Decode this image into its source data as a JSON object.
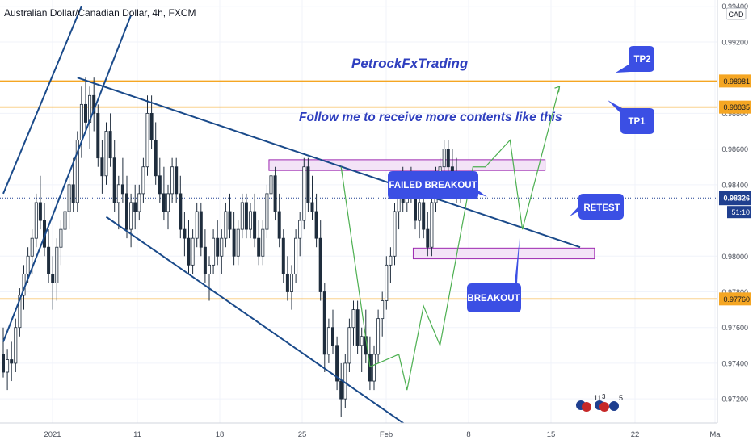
{
  "header": {
    "symbol_title": "Australian Dollar/Canadian Dollar, 4h, FXCM",
    "currency": "CAD",
    "countdown": "51:10",
    "sub_price": "0.98???"
  },
  "annotations": {
    "brand": "PetrockFxTrading",
    "follow": "Follow me to receive more contents like this",
    "failed_breakout": "FAILED BREAKOUT",
    "breakout": "BREAKOUT",
    "retest": "RETEST",
    "tp1": "TP1",
    "tp2": "TP2"
  },
  "events": {
    "count1": "11",
    "count1_sup": "3",
    "count2": "5"
  },
  "colors": {
    "up": "#26a69a",
    "down": "#1a2a3a",
    "candle": "#1f2d3d",
    "trendline": "#1a4a8a",
    "horizontal": "#f5a623",
    "zone_fill": "#f3e3f7",
    "zone_stroke": "#9c27b0",
    "label_bg": "#3b4fe4",
    "current_price_bg": "#1f3f8f",
    "projection": "#4caf50",
    "brand_text": "#2f3fbf"
  },
  "chart_data": {
    "type": "candlestick",
    "symbol": "AUD/CAD",
    "timeframe": "4h",
    "price_axis_ticks": [
      "0.99400",
      "0.99200",
      "0.98800",
      "0.98600",
      "0.98400",
      "0.98000",
      "0.97800",
      "0.97600",
      "0.97400",
      "0.97200"
    ],
    "time_axis_ticks": [
      "2021",
      "11",
      "18",
      "25",
      "Feb",
      "8",
      "15",
      "22",
      "Ma"
    ],
    "horizontal_levels": [
      {
        "price": 0.98981,
        "label": "0.98981"
      },
      {
        "price": 0.98835,
        "label": "0.98835"
      },
      {
        "price": 0.9776,
        "label": "0.97760"
      }
    ],
    "current_price": {
      "price": 0.98326,
      "label": "0.98326"
    },
    "ylim": [
      0.97065,
      0.99435
    ],
    "zones": [
      {
        "name": "upper-zone",
        "from_bar": 64.5,
        "to_bar": 131.5,
        "top": 0.9854,
        "bottom": 0.9848
      },
      {
        "name": "lower-zone",
        "from_bar": 99.5,
        "to_bar": 143.5,
        "top": 0.98045,
        "bottom": 0.97985
      }
    ],
    "trendlines": [
      {
        "name": "descending-upper",
        "from": [
          18,
          0.99
        ],
        "to": [
          140,
          0.9805
        ]
      },
      {
        "name": "descending-lower",
        "from": [
          25,
          0.9822
        ],
        "to": [
          98,
          0.9705
        ]
      },
      {
        "name": "ascending-1",
        "from": [
          0,
          0.9835
        ],
        "to": [
          19,
          0.994
        ]
      },
      {
        "name": "ascending-2",
        "from": [
          0,
          0.9752
        ],
        "to": [
          31,
          0.9935
        ]
      }
    ],
    "projection_path": [
      [
        82,
        0.985
      ],
      [
        89,
        0.9738
      ],
      [
        96,
        0.9745
      ],
      [
        98,
        0.9725
      ],
      [
        102,
        0.9772
      ],
      [
        106,
        0.975
      ],
      [
        110,
        0.98
      ],
      [
        114,
        0.985
      ],
      [
        117,
        0.985
      ],
      [
        123,
        0.9865
      ],
      [
        126,
        0.9815
      ],
      [
        135,
        0.9895
      ]
    ],
    "candles": [
      {
        "o": 0.9745,
        "h": 0.976,
        "l": 0.9732,
        "c": 0.9735
      },
      {
        "o": 0.9735,
        "h": 0.9748,
        "l": 0.9725,
        "c": 0.9742
      },
      {
        "o": 0.9742,
        "h": 0.9752,
        "l": 0.973,
        "c": 0.974
      },
      {
        "o": 0.974,
        "h": 0.9765,
        "l": 0.9735,
        "c": 0.976
      },
      {
        "o": 0.976,
        "h": 0.9782,
        "l": 0.9755,
        "c": 0.9778
      },
      {
        "o": 0.9778,
        "h": 0.9795,
        "l": 0.977,
        "c": 0.979
      },
      {
        "o": 0.979,
        "h": 0.9805,
        "l": 0.9785,
        "c": 0.98
      },
      {
        "o": 0.98,
        "h": 0.9815,
        "l": 0.979,
        "c": 0.981
      },
      {
        "o": 0.981,
        "h": 0.9835,
        "l": 0.9805,
        "c": 0.983
      },
      {
        "o": 0.983,
        "h": 0.9845,
        "l": 0.9815,
        "c": 0.982
      },
      {
        "o": 0.982,
        "h": 0.983,
        "l": 0.98,
        "c": 0.9805
      },
      {
        "o": 0.9805,
        "h": 0.9815,
        "l": 0.9785,
        "c": 0.979
      },
      {
        "o": 0.979,
        "h": 0.98,
        "l": 0.977,
        "c": 0.9785
      },
      {
        "o": 0.9785,
        "h": 0.981,
        "l": 0.9775,
        "c": 0.9805
      },
      {
        "o": 0.9805,
        "h": 0.982,
        "l": 0.9795,
        "c": 0.9815
      },
      {
        "o": 0.9815,
        "h": 0.9835,
        "l": 0.9805,
        "c": 0.9825
      },
      {
        "o": 0.9825,
        "h": 0.9845,
        "l": 0.9815,
        "c": 0.984
      },
      {
        "o": 0.984,
        "h": 0.9855,
        "l": 0.9825,
        "c": 0.983
      },
      {
        "o": 0.983,
        "h": 0.987,
        "l": 0.9825,
        "c": 0.9865
      },
      {
        "o": 0.9865,
        "h": 0.9895,
        "l": 0.9855,
        "c": 0.9885
      },
      {
        "o": 0.9885,
        "h": 0.99,
        "l": 0.987,
        "c": 0.9875
      },
      {
        "o": 0.9875,
        "h": 0.9895,
        "l": 0.986,
        "c": 0.989
      },
      {
        "o": 0.989,
        "h": 0.99,
        "l": 0.987,
        "c": 0.988
      },
      {
        "o": 0.988,
        "h": 0.9885,
        "l": 0.985,
        "c": 0.9855
      },
      {
        "o": 0.9855,
        "h": 0.9865,
        "l": 0.9835,
        "c": 0.9845
      },
      {
        "o": 0.9845,
        "h": 0.9875,
        "l": 0.984,
        "c": 0.987
      },
      {
        "o": 0.987,
        "h": 0.988,
        "l": 0.985,
        "c": 0.9855
      },
      {
        "o": 0.9855,
        "h": 0.9865,
        "l": 0.9825,
        "c": 0.983
      },
      {
        "o": 0.983,
        "h": 0.9845,
        "l": 0.9815,
        "c": 0.984
      },
      {
        "o": 0.984,
        "h": 0.9855,
        "l": 0.983,
        "c": 0.9835
      },
      {
        "o": 0.9835,
        "h": 0.9845,
        "l": 0.981,
        "c": 0.9815
      },
      {
        "o": 0.9815,
        "h": 0.9835,
        "l": 0.9805,
        "c": 0.983
      },
      {
        "o": 0.983,
        "h": 0.984,
        "l": 0.9815,
        "c": 0.9825
      },
      {
        "o": 0.9825,
        "h": 0.984,
        "l": 0.982,
        "c": 0.9835
      },
      {
        "o": 0.9835,
        "h": 0.9855,
        "l": 0.983,
        "c": 0.985
      },
      {
        "o": 0.985,
        "h": 0.989,
        "l": 0.9845,
        "c": 0.988
      },
      {
        "o": 0.988,
        "h": 0.989,
        "l": 0.986,
        "c": 0.9865
      },
      {
        "o": 0.9865,
        "h": 0.9875,
        "l": 0.984,
        "c": 0.9845
      },
      {
        "o": 0.9845,
        "h": 0.9855,
        "l": 0.983,
        "c": 0.9835
      },
      {
        "o": 0.9835,
        "h": 0.985,
        "l": 0.982,
        "c": 0.9825
      },
      {
        "o": 0.9825,
        "h": 0.984,
        "l": 0.9815,
        "c": 0.9835
      },
      {
        "o": 0.9835,
        "h": 0.9855,
        "l": 0.983,
        "c": 0.985
      },
      {
        "o": 0.985,
        "h": 0.9855,
        "l": 0.983,
        "c": 0.9835
      },
      {
        "o": 0.9835,
        "h": 0.9845,
        "l": 0.981,
        "c": 0.9815
      },
      {
        "o": 0.9815,
        "h": 0.9825,
        "l": 0.98,
        "c": 0.981
      },
      {
        "o": 0.981,
        "h": 0.982,
        "l": 0.979,
        "c": 0.9795
      },
      {
        "o": 0.9795,
        "h": 0.9815,
        "l": 0.979,
        "c": 0.981
      },
      {
        "o": 0.981,
        "h": 0.983,
        "l": 0.9805,
        "c": 0.9825
      },
      {
        "o": 0.9825,
        "h": 0.983,
        "l": 0.98,
        "c": 0.9805
      },
      {
        "o": 0.9805,
        "h": 0.9815,
        "l": 0.9785,
        "c": 0.979
      },
      {
        "o": 0.979,
        "h": 0.98,
        "l": 0.9775,
        "c": 0.9795
      },
      {
        "o": 0.9795,
        "h": 0.9815,
        "l": 0.979,
        "c": 0.981
      },
      {
        "o": 0.981,
        "h": 0.982,
        "l": 0.9795,
        "c": 0.98
      },
      {
        "o": 0.98,
        "h": 0.9815,
        "l": 0.979,
        "c": 0.981
      },
      {
        "o": 0.981,
        "h": 0.983,
        "l": 0.9805,
        "c": 0.9825
      },
      {
        "o": 0.9825,
        "h": 0.9835,
        "l": 0.981,
        "c": 0.9815
      },
      {
        "o": 0.9815,
        "h": 0.9825,
        "l": 0.9795,
        "c": 0.98
      },
      {
        "o": 0.98,
        "h": 0.982,
        "l": 0.9795,
        "c": 0.9815
      },
      {
        "o": 0.9815,
        "h": 0.9835,
        "l": 0.981,
        "c": 0.983
      },
      {
        "o": 0.983,
        "h": 0.9835,
        "l": 0.981,
        "c": 0.9815
      },
      {
        "o": 0.9815,
        "h": 0.983,
        "l": 0.981,
        "c": 0.9825
      },
      {
        "o": 0.9825,
        "h": 0.9835,
        "l": 0.9805,
        "c": 0.981
      },
      {
        "o": 0.981,
        "h": 0.982,
        "l": 0.9795,
        "c": 0.98
      },
      {
        "o": 0.98,
        "h": 0.982,
        "l": 0.9795,
        "c": 0.9815
      },
      {
        "o": 0.9815,
        "h": 0.984,
        "l": 0.981,
        "c": 0.9835
      },
      {
        "o": 0.9835,
        "h": 0.9855,
        "l": 0.9825,
        "c": 0.9845
      },
      {
        "o": 0.9845,
        "h": 0.985,
        "l": 0.982,
        "c": 0.9825
      },
      {
        "o": 0.9825,
        "h": 0.9835,
        "l": 0.9805,
        "c": 0.981
      },
      {
        "o": 0.981,
        "h": 0.9815,
        "l": 0.9785,
        "c": 0.979
      },
      {
        "o": 0.979,
        "h": 0.98,
        "l": 0.9775,
        "c": 0.978
      },
      {
        "o": 0.978,
        "h": 0.9795,
        "l": 0.977,
        "c": 0.979
      },
      {
        "o": 0.979,
        "h": 0.9815,
        "l": 0.9785,
        "c": 0.981
      },
      {
        "o": 0.981,
        "h": 0.9825,
        "l": 0.98,
        "c": 0.982
      },
      {
        "o": 0.982,
        "h": 0.9855,
        "l": 0.9815,
        "c": 0.985
      },
      {
        "o": 0.985,
        "h": 0.9855,
        "l": 0.9825,
        "c": 0.983
      },
      {
        "o": 0.983,
        "h": 0.9845,
        "l": 0.982,
        "c": 0.9825
      },
      {
        "o": 0.9825,
        "h": 0.9835,
        "l": 0.9805,
        "c": 0.981
      },
      {
        "o": 0.981,
        "h": 0.982,
        "l": 0.9775,
        "c": 0.978
      },
      {
        "o": 0.978,
        "h": 0.9785,
        "l": 0.9735,
        "c": 0.9745
      },
      {
        "o": 0.9745,
        "h": 0.9765,
        "l": 0.974,
        "c": 0.976
      },
      {
        "o": 0.976,
        "h": 0.977,
        "l": 0.9745,
        "c": 0.975
      },
      {
        "o": 0.975,
        "h": 0.9755,
        "l": 0.9725,
        "c": 0.973
      },
      {
        "o": 0.973,
        "h": 0.974,
        "l": 0.971,
        "c": 0.972
      },
      {
        "o": 0.972,
        "h": 0.9745,
        "l": 0.9715,
        "c": 0.974
      },
      {
        "o": 0.974,
        "h": 0.9765,
        "l": 0.9735,
        "c": 0.976
      },
      {
        "o": 0.976,
        "h": 0.9775,
        "l": 0.975,
        "c": 0.977
      },
      {
        "o": 0.977,
        "h": 0.9775,
        "l": 0.9745,
        "c": 0.975
      },
      {
        "o": 0.975,
        "h": 0.976,
        "l": 0.9735,
        "c": 0.9755
      },
      {
        "o": 0.9755,
        "h": 0.977,
        "l": 0.974,
        "c": 0.9745
      },
      {
        "o": 0.9745,
        "h": 0.9755,
        "l": 0.9725,
        "c": 0.973
      },
      {
        "o": 0.973,
        "h": 0.975,
        "l": 0.9725,
        "c": 0.9745
      },
      {
        "o": 0.9745,
        "h": 0.977,
        "l": 0.974,
        "c": 0.9765
      },
      {
        "o": 0.9765,
        "h": 0.978,
        "l": 0.9755,
        "c": 0.9775
      },
      {
        "o": 0.9775,
        "h": 0.98,
        "l": 0.977,
        "c": 0.9795
      },
      {
        "o": 0.9795,
        "h": 0.9805,
        "l": 0.9785,
        "c": 0.98
      },
      {
        "o": 0.98,
        "h": 0.983,
        "l": 0.9795,
        "c": 0.9825
      },
      {
        "o": 0.9825,
        "h": 0.9845,
        "l": 0.9815,
        "c": 0.984
      },
      {
        "o": 0.984,
        "h": 0.985,
        "l": 0.9825,
        "c": 0.983
      },
      {
        "o": 0.983,
        "h": 0.9845,
        "l": 0.9825,
        "c": 0.984
      },
      {
        "o": 0.984,
        "h": 0.985,
        "l": 0.983,
        "c": 0.9835
      },
      {
        "o": 0.9835,
        "h": 0.984,
        "l": 0.9815,
        "c": 0.982
      },
      {
        "o": 0.982,
        "h": 0.9835,
        "l": 0.981,
        "c": 0.983
      },
      {
        "o": 0.983,
        "h": 0.984,
        "l": 0.981,
        "c": 0.9815
      },
      {
        "o": 0.9815,
        "h": 0.9825,
        "l": 0.98,
        "c": 0.9805
      },
      {
        "o": 0.9805,
        "h": 0.9835,
        "l": 0.98,
        "c": 0.983
      },
      {
        "o": 0.983,
        "h": 0.985,
        "l": 0.9825,
        "c": 0.9845
      },
      {
        "o": 0.9845,
        "h": 0.9855,
        "l": 0.9835,
        "c": 0.985
      },
      {
        "o": 0.985,
        "h": 0.9865,
        "l": 0.9845,
        "c": 0.986
      },
      {
        "o": 0.986,
        "h": 0.9865,
        "l": 0.9845,
        "c": 0.985
      },
      {
        "o": 0.985,
        "h": 0.986,
        "l": 0.9835,
        "c": 0.984
      },
      {
        "o": 0.984,
        "h": 0.9855,
        "l": 0.983,
        "c": 0.9835
      },
      {
        "o": 0.9835,
        "h": 0.984,
        "l": 0.983,
        "c": 0.9832
      }
    ]
  }
}
